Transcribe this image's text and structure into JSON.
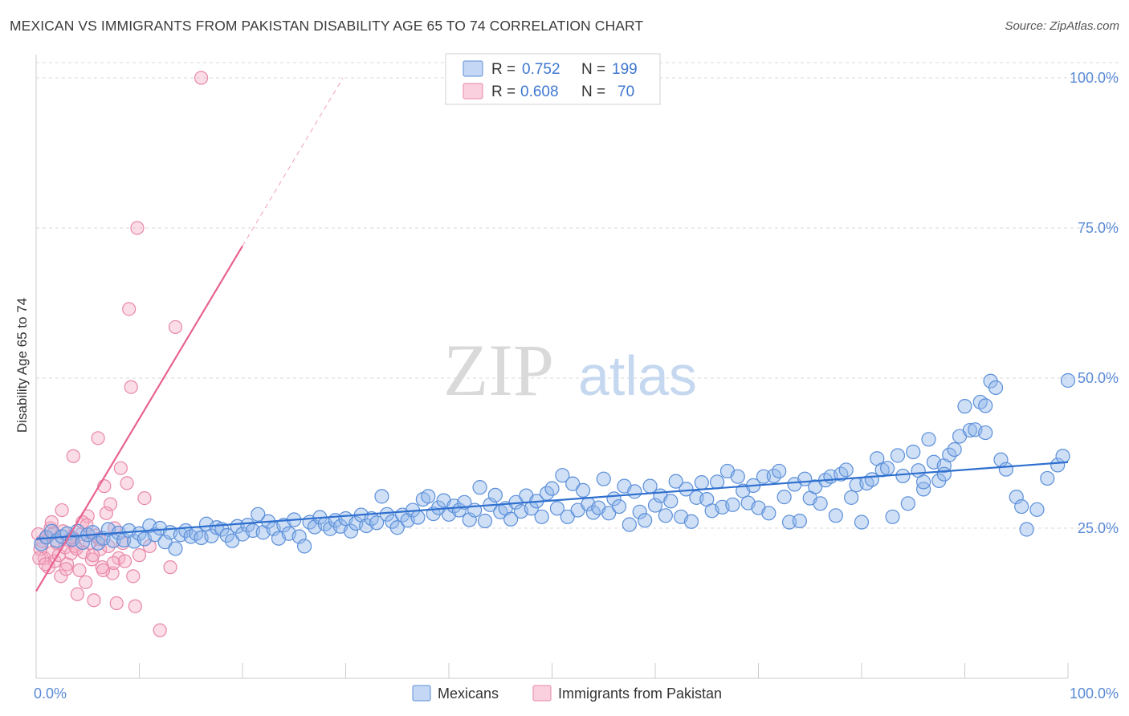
{
  "title": "MEXICAN VS IMMIGRANTS FROM PAKISTAN DISABILITY AGE 65 TO 74 CORRELATION CHART",
  "source": "Source: ZipAtlas.com",
  "watermark": {
    "zip": "ZIP",
    "atlas": "atlas"
  },
  "colors": {
    "blue": "#5b8fd9",
    "blue_fill": "rgba(147,183,235,0.45)",
    "blue_line": "#2e6fcf",
    "pink": "#e887a7",
    "pink_fill": "rgba(245,170,195,0.40)",
    "pink_line": "#e8628f",
    "grid": "#d9d9d9",
    "axis_label": "#5a8ad6"
  },
  "legend": {
    "series": [
      {
        "r_label": "R =",
        "r": "0.752",
        "n_label": "N =",
        "n": "199"
      },
      {
        "r_label": "R =",
        "r": "0.608",
        "n_label": "N =",
        "n": "70"
      }
    ]
  },
  "bottom_legend": [
    "Mexicans",
    "Immigrants from Pakistan"
  ],
  "chart_data": {
    "type": "scatter",
    "title": "MEXICAN VS IMMIGRANTS FROM PAKISTAN DISABILITY AGE 65 TO 74 CORRELATION CHART",
    "ylabel": "Disability Age 65 to 74",
    "xlabel": "",
    "x_tick_labels": [
      "0.0%",
      "100.0%"
    ],
    "y_tick_labels": [
      "25.0%",
      "50.0%",
      "75.0%",
      "100.0%"
    ],
    "xlim": [
      0,
      100
    ],
    "ylim": [
      0,
      100
    ],
    "grid": true,
    "series": [
      {
        "name": "Mexicans",
        "r": 0.752,
        "n": 199,
        "trend": {
          "x": [
            0,
            100
          ],
          "y": [
            23.2,
            36.0
          ]
        },
        "points": [
          [
            0.5,
            22.4
          ],
          [
            1,
            23.5
          ],
          [
            1.5,
            24.5
          ],
          [
            2,
            22.9
          ],
          [
            2.5,
            23.6
          ],
          [
            3,
            24.1
          ],
          [
            3.5,
            23.1
          ],
          [
            4,
            24.5
          ],
          [
            4.5,
            22.6
          ],
          [
            5,
            23.9
          ],
          [
            5.5,
            24.3
          ],
          [
            6,
            22.5
          ],
          [
            6.5,
            23.3
          ],
          [
            7,
            24.8
          ],
          [
            7.5,
            22.9
          ],
          [
            8,
            24.2
          ],
          [
            8.5,
            23.0
          ],
          [
            9,
            24.6
          ],
          [
            9.5,
            22.8
          ],
          [
            10,
            24.1
          ],
          [
            10.5,
            23.2
          ],
          [
            11,
            25.4
          ],
          [
            11.5,
            23.9
          ],
          [
            12,
            25.0
          ],
          [
            12.5,
            22.7
          ],
          [
            13,
            24.3
          ],
          [
            13.5,
            21.6
          ],
          [
            14,
            23.9
          ],
          [
            14.5,
            24.6
          ],
          [
            15,
            23.6
          ],
          [
            15.5,
            24.1
          ],
          [
            16,
            23.4
          ],
          [
            16.5,
            25.7
          ],
          [
            17,
            23.7
          ],
          [
            17.5,
            25.1
          ],
          [
            18,
            24.8
          ],
          [
            18.5,
            23.8
          ],
          [
            19,
            22.9
          ],
          [
            19.5,
            25.3
          ],
          [
            20,
            24.0
          ],
          [
            20.5,
            25.5
          ],
          [
            21,
            24.6
          ],
          [
            21.5,
            27.3
          ],
          [
            22,
            24.3
          ],
          [
            22.5,
            26.1
          ],
          [
            23,
            24.9
          ],
          [
            23.5,
            23.3
          ],
          [
            24,
            25.5
          ],
          [
            24.5,
            24.1
          ],
          [
            25,
            26.4
          ],
          [
            25.5,
            23.6
          ],
          [
            26,
            22.0
          ],
          [
            26.5,
            26.0
          ],
          [
            27,
            25.2
          ],
          [
            27.5,
            26.8
          ],
          [
            28,
            25.7
          ],
          [
            28.5,
            24.9
          ],
          [
            29,
            26.3
          ],
          [
            29.5,
            25.3
          ],
          [
            30,
            26.6
          ],
          [
            30.5,
            24.5
          ],
          [
            31,
            25.8
          ],
          [
            31.5,
            27.2
          ],
          [
            32,
            25.4
          ],
          [
            32.5,
            26.6
          ],
          [
            33,
            25.9
          ],
          [
            33.5,
            30.3
          ],
          [
            34,
            27.3
          ],
          [
            34.5,
            26.1
          ],
          [
            35,
            25.1
          ],
          [
            35.5,
            27.2
          ],
          [
            36,
            26.3
          ],
          [
            36.5,
            28.0
          ],
          [
            37,
            26.8
          ],
          [
            37.5,
            29.8
          ],
          [
            38,
            30.3
          ],
          [
            38.5,
            27.4
          ],
          [
            39,
            28.4
          ],
          [
            39.5,
            29.6
          ],
          [
            40,
            27.3
          ],
          [
            40.5,
            28.7
          ],
          [
            41,
            28.0
          ],
          [
            41.5,
            29.3
          ],
          [
            42,
            26.4
          ],
          [
            42.5,
            28.0
          ],
          [
            43,
            31.8
          ],
          [
            43.5,
            26.2
          ],
          [
            44,
            28.9
          ],
          [
            44.5,
            30.5
          ],
          [
            45,
            27.7
          ],
          [
            45.5,
            28.3
          ],
          [
            46,
            26.5
          ],
          [
            46.5,
            29.3
          ],
          [
            47,
            27.8
          ],
          [
            47.5,
            30.4
          ],
          [
            48,
            28.3
          ],
          [
            48.5,
            29.5
          ],
          [
            49,
            26.9
          ],
          [
            49.5,
            30.8
          ],
          [
            50,
            31.6
          ],
          [
            50.5,
            28.3
          ],
          [
            51,
            33.8
          ],
          [
            51.5,
            26.9
          ],
          [
            52,
            32.4
          ],
          [
            52.5,
            28.0
          ],
          [
            53,
            31.3
          ],
          [
            53.5,
            29.0
          ],
          [
            54,
            27.6
          ],
          [
            54.5,
            28.4
          ],
          [
            55,
            33.2
          ],
          [
            55.5,
            27.5
          ],
          [
            56,
            29.9
          ],
          [
            56.5,
            28.6
          ],
          [
            57,
            32.0
          ],
          [
            57.5,
            25.6
          ],
          [
            58,
            31.1
          ],
          [
            58.5,
            27.7
          ],
          [
            59,
            26.3
          ],
          [
            59.5,
            32.0
          ],
          [
            60,
            28.8
          ],
          [
            60.5,
            30.4
          ],
          [
            61,
            27.1
          ],
          [
            61.5,
            29.5
          ],
          [
            62,
            32.8
          ],
          [
            62.5,
            26.9
          ],
          [
            63,
            31.5
          ],
          [
            63.5,
            26.1
          ],
          [
            64,
            30.1
          ],
          [
            64.5,
            32.6
          ],
          [
            65,
            29.8
          ],
          [
            65.5,
            27.9
          ],
          [
            66,
            32.7
          ],
          [
            66.5,
            28.5
          ],
          [
            67,
            34.5
          ],
          [
            67.5,
            28.9
          ],
          [
            68,
            33.6
          ],
          [
            68.5,
            31.2
          ],
          [
            69,
            29.2
          ],
          [
            69.5,
            32.1
          ],
          [
            70,
            28.4
          ],
          [
            70.5,
            33.6
          ],
          [
            71,
            27.5
          ],
          [
            71.5,
            33.7
          ],
          [
            72,
            34.5
          ],
          [
            72.5,
            30.2
          ],
          [
            73,
            26.0
          ],
          [
            73.5,
            32.3
          ],
          [
            74,
            26.2
          ],
          [
            74.5,
            33.2
          ],
          [
            75,
            30.0
          ],
          [
            75.5,
            31.9
          ],
          [
            76,
            29.1
          ],
          [
            76.5,
            33.0
          ],
          [
            77,
            33.6
          ],
          [
            77.5,
            27.1
          ],
          [
            78,
            34.0
          ],
          [
            78.5,
            34.7
          ],
          [
            79,
            30.1
          ],
          [
            79.5,
            32.2
          ],
          [
            80,
            26.0
          ],
          [
            80.5,
            32.5
          ],
          [
            81,
            33.1
          ],
          [
            81.5,
            36.6
          ],
          [
            82,
            34.7
          ],
          [
            82.5,
            35.0
          ],
          [
            83,
            26.9
          ],
          [
            83.5,
            37.1
          ],
          [
            84,
            33.7
          ],
          [
            84.5,
            29.1
          ],
          [
            85,
            37.7
          ],
          [
            85.5,
            34.6
          ],
          [
            86,
            31.5
          ],
          [
            86.5,
            39.8
          ],
          [
            87,
            36.0
          ],
          [
            87.5,
            32.9
          ],
          [
            88,
            35.4
          ],
          [
            88.5,
            37.2
          ],
          [
            89,
            38.1
          ],
          [
            89.5,
            40.3
          ],
          [
            90,
            45.3
          ],
          [
            90.5,
            41.3
          ],
          [
            91,
            41.4
          ],
          [
            91.5,
            46.0
          ],
          [
            92,
            45.4
          ],
          [
            92.5,
            49.5
          ],
          [
            93,
            48.4
          ],
          [
            93.5,
            36.4
          ],
          [
            94,
            34.8
          ],
          [
            95,
            30.2
          ],
          [
            96,
            24.8
          ],
          [
            97,
            28.1
          ],
          [
            98,
            33.3
          ],
          [
            99,
            35.5
          ],
          [
            99.5,
            37.0
          ],
          [
            100,
            49.6
          ],
          [
            86,
            32.7
          ],
          [
            88,
            34.0
          ],
          [
            92,
            40.9
          ],
          [
            95.5,
            28.6
          ]
        ]
      },
      {
        "name": "Immigrants from Pakistan",
        "r": 0.608,
        "n": 70,
        "trend": {
          "x": [
            0,
            20
          ],
          "y": [
            14.5,
            72.0
          ]
        },
        "points": [
          [
            0.2,
            24.0
          ],
          [
            0.4,
            21.5
          ],
          [
            0.6,
            22.8
          ],
          [
            0.8,
            20.0
          ],
          [
            1.0,
            23.5
          ],
          [
            1.2,
            18.5
          ],
          [
            1.4,
            25.0
          ],
          [
            1.6,
            21.0
          ],
          [
            1.8,
            19.5
          ],
          [
            2.0,
            22.5
          ],
          [
            2.2,
            20.5
          ],
          [
            2.4,
            17.0
          ],
          [
            2.6,
            24.5
          ],
          [
            2.8,
            21.8
          ],
          [
            3.0,
            19.0
          ],
          [
            3.2,
            23.0
          ],
          [
            3.4,
            20.8
          ],
          [
            3.6,
            37.0
          ],
          [
            3.8,
            22.0
          ],
          [
            4.0,
            14.0
          ],
          [
            4.2,
            18.0
          ],
          [
            4.4,
            24.0
          ],
          [
            4.6,
            21.0
          ],
          [
            4.8,
            16.0
          ],
          [
            5.0,
            27.0
          ],
          [
            5.2,
            22.5
          ],
          [
            5.4,
            19.8
          ],
          [
            5.6,
            13.0
          ],
          [
            5.8,
            23.8
          ],
          [
            6.0,
            40.0
          ],
          [
            6.2,
            21.5
          ],
          [
            6.4,
            18.5
          ],
          [
            6.6,
            32.0
          ],
          [
            6.8,
            27.5
          ],
          [
            7.0,
            22.0
          ],
          [
            7.2,
            29.0
          ],
          [
            7.4,
            17.5
          ],
          [
            7.6,
            25.0
          ],
          [
            7.8,
            12.5
          ],
          [
            8.0,
            20.0
          ],
          [
            8.2,
            35.0
          ],
          [
            8.4,
            22.5
          ],
          [
            8.6,
            19.5
          ],
          [
            8.8,
            32.5
          ],
          [
            9.0,
            61.5
          ],
          [
            9.2,
            48.5
          ],
          [
            9.4,
            17.0
          ],
          [
            9.6,
            12.0
          ],
          [
            9.8,
            75.0
          ],
          [
            10.0,
            20.5
          ],
          [
            10.5,
            30.0
          ],
          [
            11.0,
            22.0
          ],
          [
            12.0,
            8.0
          ],
          [
            13.0,
            18.5
          ],
          [
            13.5,
            58.5
          ],
          [
            16.0,
            100.0
          ],
          [
            1.5,
            26.0
          ],
          [
            2.5,
            28.0
          ],
          [
            3.5,
            23.5
          ],
          [
            4.5,
            26.0
          ],
          [
            5.5,
            20.5
          ],
          [
            6.5,
            18.0
          ],
          [
            0.3,
            20.0
          ],
          [
            0.9,
            19.0
          ],
          [
            1.7,
            24.2
          ],
          [
            2.9,
            18.2
          ],
          [
            3.9,
            21.6
          ],
          [
            4.9,
            25.5
          ],
          [
            6.1,
            23.2
          ],
          [
            7.5,
            19.2
          ]
        ]
      }
    ]
  }
}
